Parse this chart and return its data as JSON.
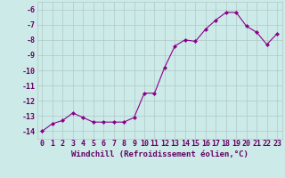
{
  "x": [
    0,
    1,
    2,
    3,
    4,
    5,
    6,
    7,
    8,
    9,
    10,
    11,
    12,
    13,
    14,
    15,
    16,
    17,
    18,
    19,
    20,
    21,
    22,
    23
  ],
  "y": [
    -14.0,
    -13.5,
    -13.3,
    -12.8,
    -13.1,
    -13.4,
    -13.4,
    -13.4,
    -13.4,
    -13.1,
    -11.5,
    -11.5,
    -9.8,
    -8.4,
    -8.0,
    -8.1,
    -7.3,
    -6.7,
    -6.2,
    -6.2,
    -7.1,
    -7.5,
    -8.3,
    -7.6
  ],
  "line_color": "#8B008B",
  "marker": "D",
  "marker_size": 2,
  "bg_color": "#cceae7",
  "grid_color": "#b0c8c8",
  "xlabel": "Windchill (Refroidissement éolien,°C)",
  "xlabel_fontsize": 6.5,
  "tick_fontsize": 6,
  "ylim": [
    -14.5,
    -5.5
  ],
  "xlim": [
    -0.5,
    23.5
  ],
  "yticks": [
    -14,
    -13,
    -12,
    -11,
    -10,
    -9,
    -8,
    -7,
    -6
  ],
  "xticks": [
    0,
    1,
    2,
    3,
    4,
    5,
    6,
    7,
    8,
    9,
    10,
    11,
    12,
    13,
    14,
    15,
    16,
    17,
    18,
    19,
    20,
    21,
    22,
    23
  ]
}
